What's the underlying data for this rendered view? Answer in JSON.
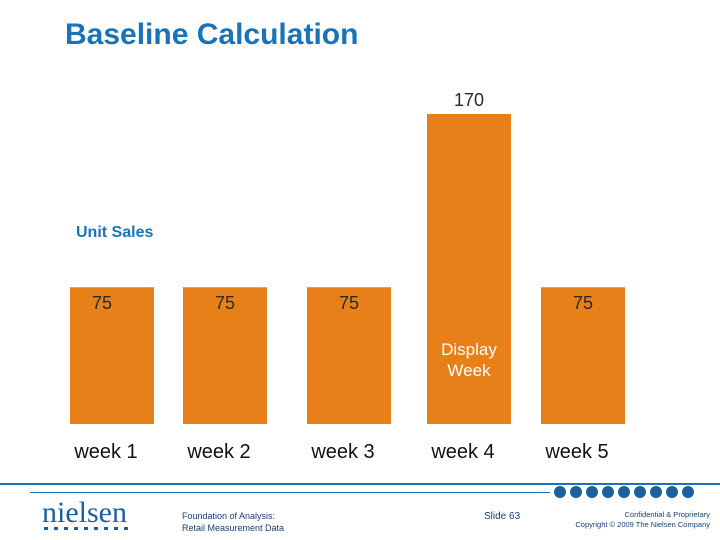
{
  "slide": {
    "title": "Baseline Calculation"
  },
  "chart_data": {
    "type": "bar",
    "categories": [
      "week 1",
      "week 2",
      "week 3",
      "week 4",
      "week 5"
    ],
    "values": [
      75,
      75,
      75,
      170,
      75
    ],
    "data_labels": [
      "75",
      "75",
      "75",
      "170",
      "75"
    ],
    "ylabel": "Unit Sales",
    "annotation": {
      "category": "week 4",
      "text_line1": "Display",
      "text_line2": "Week"
    },
    "bar_color": "#e8801a",
    "ylim": [
      0,
      170
    ]
  },
  "footer": {
    "logo_text": "nielsen",
    "course_line1": "Foundation of Analysis:",
    "course_line2": "Retail Measurement Data",
    "slide_label": "Slide 63",
    "confidential": "Confidential & Proprietary",
    "copyright": "Copyright © 2009 The Nielsen Company",
    "accent_color": "#1a73b8"
  }
}
